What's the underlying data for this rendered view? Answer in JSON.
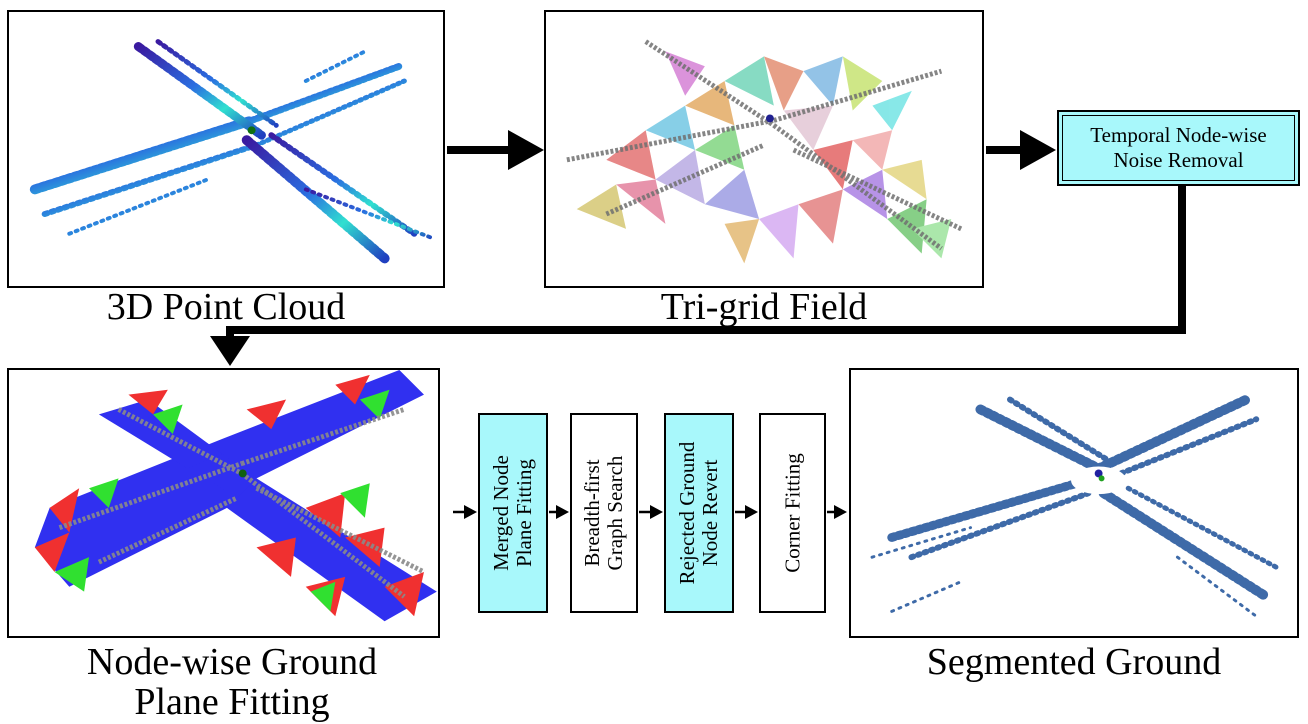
{
  "captions": {
    "point_cloud": "3D Point Cloud",
    "trigrid": "Tri-grid Field",
    "node_wise_line1": "Node-wise Ground",
    "node_wise_line2": "Plane Fitting",
    "segmented": "Segmented Ground"
  },
  "process_boxes": {
    "temporal_line1": "Temporal Node-wise",
    "temporal_line2": "Noise Removal",
    "merged_line1": "Merged Node",
    "merged_line2": "Plane Fitting",
    "bfs_line1": "Breadth-first",
    "bfs_line2": "Graph Search",
    "rejected_line1": "Rejected Ground",
    "rejected_line2": "Node Revert",
    "corner": "Corner Fitting"
  },
  "colors": {
    "cyan_box": "#a8f8fb",
    "ground_blue": "#3030f0",
    "ground_red": "#f03030",
    "ground_green": "#30e030",
    "segmented_blue": "#3e6aa8",
    "point_gray": "#8a8a8a"
  }
}
